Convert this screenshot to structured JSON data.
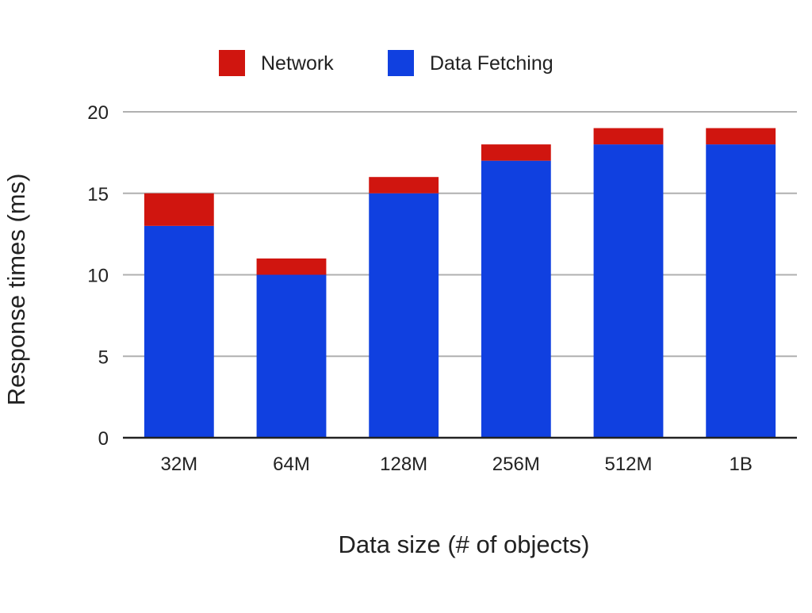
{
  "chart_data": {
    "type": "bar",
    "stacked": true,
    "categories": [
      "32M",
      "64M",
      "128M",
      "256M",
      "512M",
      "1B"
    ],
    "series": [
      {
        "name": "Data Fetching",
        "values": [
          13,
          10,
          15,
          17,
          18,
          18
        ],
        "color": "#1040e0"
      },
      {
        "name": "Network",
        "values": [
          2,
          1,
          1,
          1,
          1,
          1
        ],
        "color": "#d0150f"
      }
    ],
    "legend_order": [
      "Network",
      "Data Fetching"
    ],
    "legend_position": "top",
    "xlabel": "Data size (# of objects)",
    "ylabel": "Response times (ms)",
    "ylim": [
      0,
      20
    ],
    "yticks": [
      "0",
      "5",
      "10",
      "15",
      "20"
    ],
    "grid": "horizontal",
    "colors": {
      "gridline": "#b0b0b0",
      "baseline": "#222222"
    }
  }
}
